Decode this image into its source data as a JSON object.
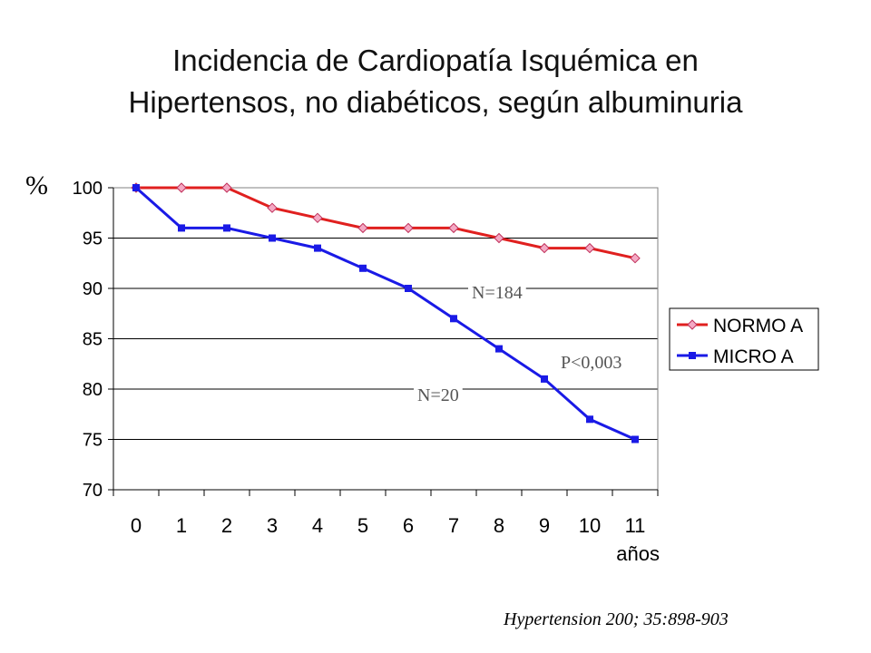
{
  "title_lines": [
    "Incidencia de Cardiopatía Isquémica en",
    "Hipertensos, no diabéticos, según albuminuria"
  ],
  "citation": "Hypertension 200; 35:898-903",
  "chart_data": {
    "type": "line",
    "title": "",
    "ylabel": "%",
    "xlabel": "años",
    "x": [
      0,
      1,
      2,
      3,
      4,
      5,
      6,
      7,
      8,
      9,
      10,
      11
    ],
    "ylim": [
      70,
      100
    ],
    "yticks": [
      70,
      75,
      80,
      85,
      90,
      95,
      100
    ],
    "grid": true,
    "legend_position": "right",
    "series": [
      {
        "name": "NORMO A",
        "color": "#e0201f",
        "marker": "diamond",
        "marker_color": "#f4a9c4",
        "values": [
          100,
          100,
          100,
          98,
          97,
          96,
          96,
          96,
          95,
          94,
          94,
          93
        ]
      },
      {
        "name": "MICRO A",
        "color": "#1a1ae6",
        "marker": "square",
        "marker_color": "#1a1ae6",
        "values": [
          100,
          96,
          96,
          95,
          94,
          92,
          90,
          87,
          84,
          81,
          77,
          75
        ]
      }
    ],
    "annotations": {
      "normo": "N=184",
      "micro": "N=20",
      "pvalue": "P<0,003"
    }
  }
}
